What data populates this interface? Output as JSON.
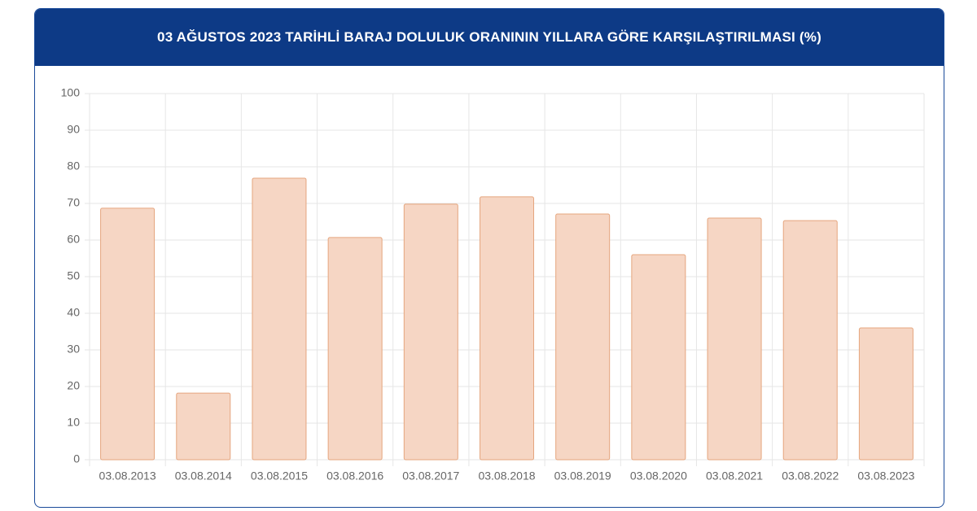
{
  "chart_data": {
    "type": "bar",
    "title": "03 AĞUSTOS 2023 TARİHLİ BARAJ DOLULUK ORANININ YILLARA GÖRE KARŞILAŞTIRILMASI (%)",
    "categories": [
      "03.08.2013",
      "03.08.2014",
      "03.08.2015",
      "03.08.2016",
      "03.08.2017",
      "03.08.2018",
      "03.08.2019",
      "03.08.2020",
      "03.08.2021",
      "03.08.2022",
      "03.08.2023"
    ],
    "values": [
      68.7,
      18.2,
      76.9,
      60.7,
      69.8,
      71.8,
      67.1,
      56.0,
      66.0,
      65.3,
      36.0
    ],
    "color": "#f6d6c4",
    "edge_color": "#e5a57e",
    "ylim": [
      0,
      100
    ],
    "yticks": [
      0,
      10,
      20,
      30,
      40,
      50,
      60,
      70,
      80,
      90,
      100
    ],
    "grid": true
  }
}
